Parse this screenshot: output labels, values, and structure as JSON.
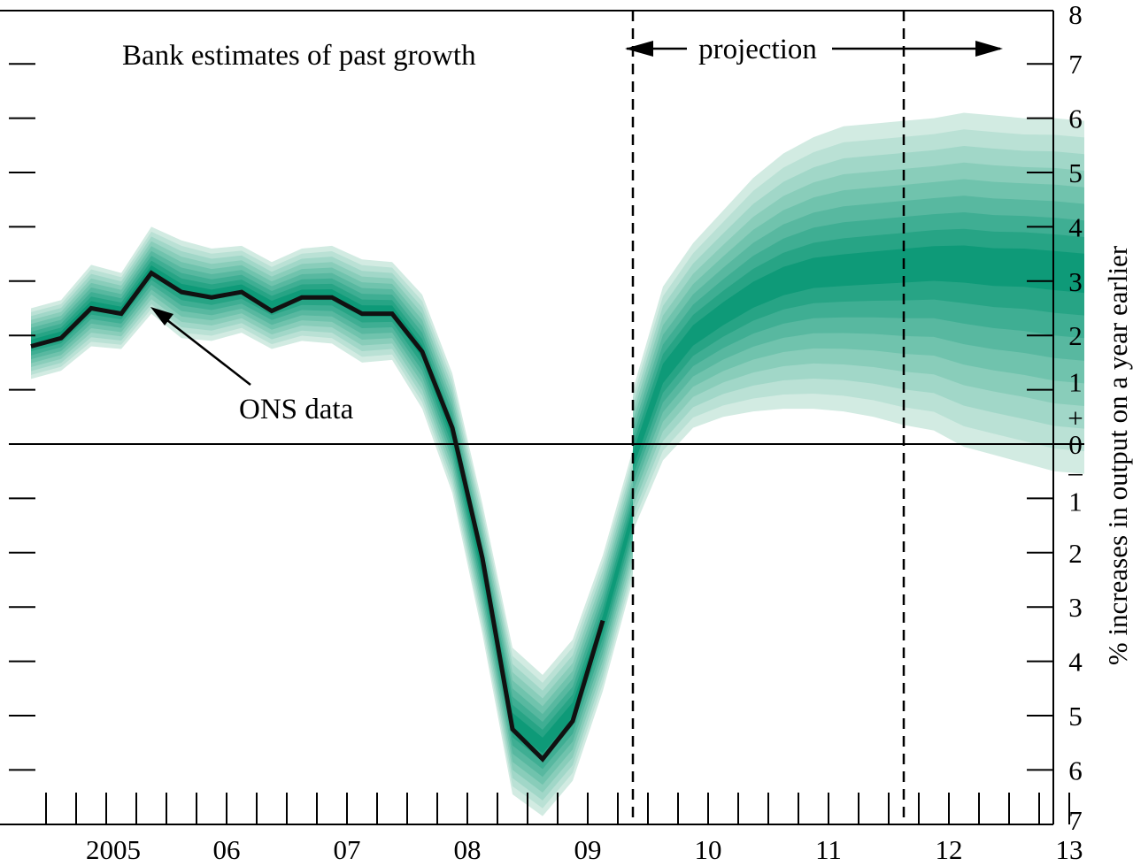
{
  "chart_data": {
    "type": "area",
    "subtype": "fan_chart",
    "title": "",
    "annotations": {
      "left_label": "Bank estimates of past growth",
      "projection_label": "projection",
      "data_label": "ONS data"
    },
    "ylabel": "% increases in output on a year earlier",
    "ylim": [
      -7,
      8
    ],
    "y_ticks": [
      {
        "value": 8,
        "label": "8"
      },
      {
        "value": 7,
        "label": "7"
      },
      {
        "value": 6,
        "label": "6"
      },
      {
        "value": 5,
        "label": "5"
      },
      {
        "value": 4,
        "label": "4"
      },
      {
        "value": 3,
        "label": "3"
      },
      {
        "value": 2,
        "label": "2"
      },
      {
        "value": 1,
        "label": "1"
      },
      {
        "value": 0,
        "label": "0"
      },
      {
        "value": -1,
        "label": "1"
      },
      {
        "value": -2,
        "label": "2"
      },
      {
        "value": -3,
        "label": "3"
      },
      {
        "value": -4,
        "label": "4"
      },
      {
        "value": -5,
        "label": "5"
      },
      {
        "value": -6,
        "label": "6"
      },
      {
        "value": -7,
        "label": "7"
      }
    ],
    "sign_labels": {
      "plus": "+",
      "minus": "–"
    },
    "x_ticks": [
      {
        "year": 2005.0,
        "label": "2005"
      },
      {
        "year": 2006.0,
        "label": "06"
      },
      {
        "year": 2007.0,
        "label": "07"
      },
      {
        "year": 2008.0,
        "label": "08"
      },
      {
        "year": 2009.0,
        "label": "09"
      },
      {
        "year": 2010.0,
        "label": "10"
      },
      {
        "year": 2011.0,
        "label": "11"
      },
      {
        "year": 2012.0,
        "label": "12"
      },
      {
        "year": 2013.0,
        "label": "13"
      }
    ],
    "xlim": [
      2004.4,
      2013.4
    ],
    "projection_start": 2009.375,
    "vertical_marker": 2011.625,
    "ons_data": {
      "x": [
        2004.375,
        2004.625,
        2004.875,
        2005.125,
        2005.375,
        2005.625,
        2005.875,
        2006.125,
        2006.375,
        2006.625,
        2006.875,
        2007.125,
        2007.375,
        2007.625,
        2007.875,
        2008.125,
        2008.375,
        2008.625,
        2008.875,
        2009.125,
        2009.375
      ],
      "y": [
        1.8,
        1.95,
        2.5,
        2.4,
        3.15,
        2.8,
        2.7,
        2.8,
        2.45,
        2.7,
        2.7,
        2.4,
        2.4,
        1.7,
        0.3,
        -2.1,
        -5.25,
        -5.8,
        -5.1,
        -3.25,
        0
      ]
    },
    "backcast_fan": {
      "x": [
        2004.375,
        2004.625,
        2004.875,
        2005.125,
        2005.375,
        2005.625,
        2005.875,
        2006.125,
        2006.375,
        2006.625,
        2006.875,
        2007.125,
        2007.375,
        2007.625,
        2007.875,
        2008.125,
        2008.375,
        2008.625,
        2008.875,
        2009.125,
        2009.375
      ],
      "central": [
        1.85,
        2.0,
        2.55,
        2.45,
        3.2,
        2.85,
        2.75,
        2.85,
        2.55,
        2.75,
        2.75,
        2.45,
        2.45,
        1.7,
        0.2,
        -2.3,
        -5.1,
        -5.55,
        -4.9,
        -3.3,
        -1.3
      ],
      "outer_half_width": [
        0.65,
        0.65,
        0.75,
        0.7,
        0.8,
        0.9,
        0.85,
        0.8,
        0.8,
        0.85,
        0.9,
        0.95,
        0.9,
        1.05,
        1.1,
        1.2,
        1.35,
        1.3,
        1.3,
        1.25,
        1.2
      ]
    },
    "projection_fan": {
      "x": [
        2009.375,
        2009.625,
        2009.875,
        2010.125,
        2010.375,
        2010.625,
        2010.875,
        2011.125,
        2011.375,
        2011.625,
        2011.875,
        2012.125,
        2012.375,
        2012.625,
        2012.875,
        2013.125
      ],
      "central": [
        -0.3,
        1.3,
        2.0,
        2.4,
        2.75,
        3.0,
        3.15,
        3.2,
        3.25,
        3.3,
        3.35,
        3.35,
        3.3,
        3.3,
        3.25,
        3.2
      ],
      "upper_outer": [
        1.0,
        2.9,
        3.7,
        4.3,
        4.9,
        5.35,
        5.65,
        5.85,
        5.9,
        5.95,
        6.0,
        6.1,
        6.05,
        6.0,
        6.0,
        5.95
      ],
      "lower_outer": [
        -1.6,
        -0.3,
        0.3,
        0.5,
        0.6,
        0.65,
        0.65,
        0.6,
        0.5,
        0.35,
        0.25,
        -0.05,
        -0.2,
        -0.35,
        -0.5,
        -0.55
      ],
      "left_edge_low": [
        -2.0,
        -0.5,
        0.6
      ]
    },
    "colors": {
      "fan_dark": "#0e9a78",
      "fan_light": "#d2ebe2",
      "line": "#111111",
      "axis": "#000000"
    },
    "grid": false,
    "legend": "none"
  }
}
